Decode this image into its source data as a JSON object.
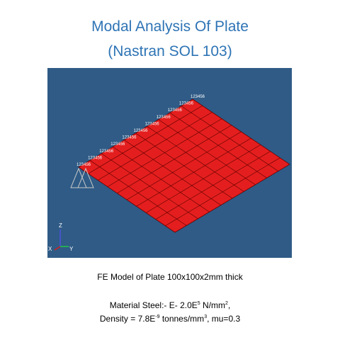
{
  "title": {
    "line1": "Modal Analysis Of Plate",
    "line2": "(Nastran SOL  103)"
  },
  "model": {
    "plate_color": "#e41e1e",
    "background_color": "#2f5b86",
    "mesh_divisions": 10,
    "constraint_label": "123456",
    "constraint_count": 11,
    "triad": {
      "z": "Z",
      "x": "X",
      "y": "Y"
    }
  },
  "caption": {
    "model": "FE Model of Plate 100x100x2mm thick",
    "material_prefix": "Material Steel:- E- 2.0E",
    "material_exp": "5",
    "material_unit": " N/mm",
    "material_unit_exp": "2",
    "material_suffix": ",",
    "density_prefix": "Density = 7.8E",
    "density_exp": "-9",
    "density_unit": " tonnes/mm",
    "density_unit_exp": "3",
    "density_suffix": ", mu=0.3"
  }
}
